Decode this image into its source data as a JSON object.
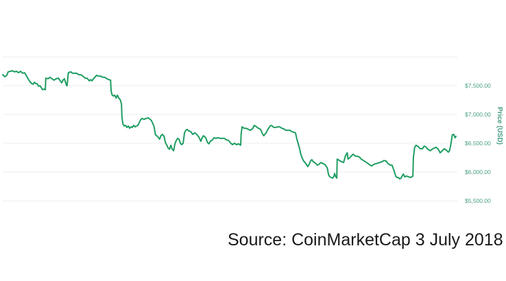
{
  "caption": {
    "text": "Source: CoinMarketCap 3 July 2018",
    "color": "#1a1a1a"
  },
  "chart_data": {
    "type": "line",
    "title": "",
    "xlabel": "",
    "ylabel": "Price (USD)",
    "legend": "none",
    "grid": true,
    "line_color": "#1e9d62",
    "grid_color": "#ededed",
    "label_color": "#4a9e86",
    "y_axis": {
      "side": "right",
      "ylim": [
        5500,
        8000
      ],
      "gridline_values": [
        8000,
        7500,
        7000,
        6500,
        6000,
        5500
      ],
      "ticks": [
        {
          "value": 7500,
          "label": "$7,500.00"
        },
        {
          "value": 7000,
          "label": "$7,000.00"
        },
        {
          "value": 6500,
          "label": "$6,500.00"
        },
        {
          "value": 6000,
          "label": "$6,000.00"
        },
        {
          "value": 5500,
          "label": "$5,500.00"
        }
      ]
    },
    "x_axis": {
      "tick_labels": [],
      "note": "no x-axis labels shown; x = timeline percent 0-100"
    },
    "series": [
      {
        "name": "Price (USD)",
        "points": [
          [
            0.0,
            7690
          ],
          [
            0.5,
            7655
          ],
          [
            0.9,
            7680
          ],
          [
            1.2,
            7740
          ],
          [
            1.7,
            7750
          ],
          [
            2.1,
            7760
          ],
          [
            2.6,
            7740
          ],
          [
            3.0,
            7750
          ],
          [
            3.5,
            7725
          ],
          [
            3.9,
            7750
          ],
          [
            4.4,
            7715
          ],
          [
            4.8,
            7725
          ],
          [
            5.1,
            7690
          ],
          [
            5.4,
            7645
          ],
          [
            5.7,
            7605
          ],
          [
            6.1,
            7560
          ],
          [
            6.4,
            7535
          ],
          [
            6.7,
            7525
          ],
          [
            7.0,
            7560
          ],
          [
            7.3,
            7535
          ],
          [
            7.6,
            7535
          ],
          [
            7.9,
            7490
          ],
          [
            8.2,
            7500
          ],
          [
            8.5,
            7465
          ],
          [
            8.8,
            7430
          ],
          [
            9.1,
            7440
          ],
          [
            9.4,
            7430
          ],
          [
            9.5,
            7630
          ],
          [
            10.0,
            7620
          ],
          [
            10.4,
            7645
          ],
          [
            10.9,
            7620
          ],
          [
            11.3,
            7595
          ],
          [
            11.8,
            7620
          ],
          [
            12.3,
            7630
          ],
          [
            12.7,
            7585
          ],
          [
            13.0,
            7550
          ],
          [
            13.3,
            7595
          ],
          [
            13.6,
            7620
          ],
          [
            13.9,
            7550
          ],
          [
            14.1,
            7500
          ],
          [
            14.2,
            7500
          ],
          [
            14.4,
            7680
          ],
          [
            14.5,
            7725
          ],
          [
            15.0,
            7740
          ],
          [
            15.4,
            7715
          ],
          [
            15.9,
            7715
          ],
          [
            16.3,
            7715
          ],
          [
            16.8,
            7690
          ],
          [
            17.2,
            7690
          ],
          [
            17.7,
            7665
          ],
          [
            18.2,
            7630
          ],
          [
            18.6,
            7630
          ],
          [
            19.1,
            7585
          ],
          [
            19.4,
            7605
          ],
          [
            19.7,
            7585
          ],
          [
            20.0,
            7620
          ],
          [
            20.3,
            7645
          ],
          [
            20.7,
            7680
          ],
          [
            21.2,
            7665
          ],
          [
            21.6,
            7665
          ],
          [
            22.1,
            7645
          ],
          [
            22.5,
            7645
          ],
          [
            23.0,
            7620
          ],
          [
            23.4,
            7605
          ],
          [
            23.8,
            7595
          ],
          [
            23.9,
            7415
          ],
          [
            24.1,
            7345
          ],
          [
            24.4,
            7320
          ],
          [
            24.7,
            7335
          ],
          [
            25.0,
            7285
          ],
          [
            25.3,
            7335
          ],
          [
            25.6,
            7285
          ],
          [
            25.9,
            7260
          ],
          [
            26.2,
            7180
          ],
          [
            26.3,
            6965
          ],
          [
            26.5,
            6835
          ],
          [
            26.8,
            6800
          ],
          [
            27.1,
            6810
          ],
          [
            27.4,
            6775
          ],
          [
            27.7,
            6800
          ],
          [
            28.0,
            6760
          ],
          [
            28.3,
            6785
          ],
          [
            28.6,
            6775
          ],
          [
            28.9,
            6810
          ],
          [
            29.2,
            6785
          ],
          [
            29.5,
            6800
          ],
          [
            29.8,
            6810
          ],
          [
            30.1,
            6855
          ],
          [
            30.4,
            6905
          ],
          [
            30.7,
            6930
          ],
          [
            31.2,
            6915
          ],
          [
            31.6,
            6930
          ],
          [
            32.1,
            6940
          ],
          [
            32.5,
            6915
          ],
          [
            32.8,
            6895
          ],
          [
            33.1,
            6845
          ],
          [
            33.4,
            6785
          ],
          [
            33.6,
            6690
          ],
          [
            33.7,
            6645
          ],
          [
            34.0,
            6630
          ],
          [
            34.3,
            6605
          ],
          [
            34.6,
            6570
          ],
          [
            34.9,
            6630
          ],
          [
            35.2,
            6655
          ],
          [
            35.6,
            6620
          ],
          [
            35.9,
            6510
          ],
          [
            36.2,
            6465
          ],
          [
            36.5,
            6415
          ],
          [
            36.8,
            6395
          ],
          [
            37.1,
            6465
          ],
          [
            37.4,
            6395
          ],
          [
            37.7,
            6370
          ],
          [
            38.0,
            6490
          ],
          [
            38.3,
            6550
          ],
          [
            38.6,
            6585
          ],
          [
            38.9,
            6570
          ],
          [
            39.2,
            6500
          ],
          [
            39.5,
            6475
          ],
          [
            39.8,
            6500
          ],
          [
            40.1,
            6680
          ],
          [
            40.4,
            6725
          ],
          [
            40.7,
            6740
          ],
          [
            41.0,
            6715
          ],
          [
            41.5,
            6700
          ],
          [
            41.9,
            6655
          ],
          [
            42.4,
            6680
          ],
          [
            42.8,
            6655
          ],
          [
            43.3,
            6605
          ],
          [
            43.7,
            6535
          ],
          [
            44.0,
            6595
          ],
          [
            44.3,
            6630
          ],
          [
            44.8,
            6595
          ],
          [
            45.2,
            6510
          ],
          [
            45.5,
            6490
          ],
          [
            45.8,
            6535
          ],
          [
            46.3,
            6560
          ],
          [
            46.6,
            6595
          ],
          [
            47.0,
            6585
          ],
          [
            47.5,
            6595
          ],
          [
            48.0,
            6585
          ],
          [
            48.4,
            6585
          ],
          [
            48.9,
            6585
          ],
          [
            49.3,
            6560
          ],
          [
            49.8,
            6550
          ],
          [
            50.2,
            6510
          ],
          [
            50.7,
            6475
          ],
          [
            51.1,
            6500
          ],
          [
            51.6,
            6475
          ],
          [
            52.0,
            6490
          ],
          [
            52.5,
            6465
          ],
          [
            52.6,
            6655
          ],
          [
            52.8,
            6785
          ],
          [
            53.3,
            6760
          ],
          [
            53.7,
            6760
          ],
          [
            54.2,
            6740
          ],
          [
            54.6,
            6725
          ],
          [
            55.1,
            6750
          ],
          [
            55.5,
            6810
          ],
          [
            56.0,
            6785
          ],
          [
            56.4,
            6760
          ],
          [
            56.9,
            6740
          ],
          [
            57.3,
            6665
          ],
          [
            57.6,
            6630
          ],
          [
            58.1,
            6680
          ],
          [
            58.5,
            6740
          ],
          [
            59.0,
            6800
          ],
          [
            59.3,
            6810
          ],
          [
            59.8,
            6775
          ],
          [
            60.2,
            6775
          ],
          [
            60.7,
            6785
          ],
          [
            61.1,
            6785
          ],
          [
            61.6,
            6760
          ],
          [
            62.0,
            6750
          ],
          [
            62.5,
            6725
          ],
          [
            62.9,
            6725
          ],
          [
            63.4,
            6725
          ],
          [
            63.8,
            6700
          ],
          [
            64.3,
            6690
          ],
          [
            64.6,
            6680
          ],
          [
            64.9,
            6570
          ],
          [
            65.2,
            6490
          ],
          [
            65.5,
            6405
          ],
          [
            65.8,
            6300
          ],
          [
            66.1,
            6240
          ],
          [
            66.4,
            6190
          ],
          [
            66.7,
            6165
          ],
          [
            67.0,
            6130
          ],
          [
            67.3,
            6095
          ],
          [
            67.6,
            6130
          ],
          [
            67.9,
            6190
          ],
          [
            68.2,
            6215
          ],
          [
            68.5,
            6180
          ],
          [
            69.0,
            6155
          ],
          [
            69.4,
            6120
          ],
          [
            69.7,
            6130
          ],
          [
            70.2,
            6165
          ],
          [
            70.7,
            6145
          ],
          [
            71.1,
            6130
          ],
          [
            71.6,
            6070
          ],
          [
            71.9,
            5950
          ],
          [
            72.2,
            5915
          ],
          [
            72.5,
            5905
          ],
          [
            72.8,
            5895
          ],
          [
            73.1,
            5930
          ],
          [
            73.2,
            5975
          ],
          [
            73.5,
            5915
          ],
          [
            73.7,
            5895
          ],
          [
            73.8,
            6225
          ],
          [
            74.3,
            6200
          ],
          [
            74.7,
            6180
          ],
          [
            75.2,
            6165
          ],
          [
            75.6,
            6275
          ],
          [
            76.0,
            6335
          ],
          [
            76.2,
            6225
          ],
          [
            76.6,
            6250
          ],
          [
            77.0,
            6285
          ],
          [
            77.3,
            6310
          ],
          [
            77.8,
            6275
          ],
          [
            78.2,
            6275
          ],
          [
            78.7,
            6260
          ],
          [
            79.1,
            6225
          ],
          [
            79.6,
            6200
          ],
          [
            80.0,
            6180
          ],
          [
            80.5,
            6155
          ],
          [
            80.9,
            6130
          ],
          [
            81.4,
            6105
          ],
          [
            81.8,
            6130
          ],
          [
            82.3,
            6145
          ],
          [
            82.8,
            6155
          ],
          [
            83.2,
            6165
          ],
          [
            83.7,
            6180
          ],
          [
            84.1,
            6200
          ],
          [
            84.6,
            6190
          ],
          [
            85.0,
            6145
          ],
          [
            85.5,
            6120
          ],
          [
            85.9,
            6120
          ],
          [
            86.4,
            6010
          ],
          [
            86.7,
            5930
          ],
          [
            87.0,
            5905
          ],
          [
            87.3,
            5905
          ],
          [
            87.6,
            5880
          ],
          [
            87.9,
            5895
          ],
          [
            88.2,
            5940
          ],
          [
            88.4,
            5965
          ],
          [
            88.7,
            5915
          ],
          [
            89.1,
            5930
          ],
          [
            89.6,
            5915
          ],
          [
            90.0,
            5905
          ],
          [
            90.5,
            5930
          ],
          [
            90.6,
            6250
          ],
          [
            90.9,
            6430
          ],
          [
            91.2,
            6465
          ],
          [
            91.7,
            6440
          ],
          [
            92.1,
            6405
          ],
          [
            92.6,
            6405
          ],
          [
            93.0,
            6450
          ],
          [
            93.3,
            6440
          ],
          [
            93.8,
            6395
          ],
          [
            94.3,
            6370
          ],
          [
            94.7,
            6395
          ],
          [
            95.2,
            6415
          ],
          [
            95.6,
            6430
          ],
          [
            96.1,
            6395
          ],
          [
            96.5,
            6335
          ],
          [
            97.0,
            6370
          ],
          [
            97.4,
            6405
          ],
          [
            97.9,
            6380
          ],
          [
            98.3,
            6345
          ],
          [
            98.6,
            6370
          ],
          [
            98.9,
            6490
          ],
          [
            99.2,
            6645
          ],
          [
            99.5,
            6655
          ],
          [
            99.8,
            6595
          ],
          [
            100.0,
            6620
          ]
        ]
      }
    ]
  }
}
